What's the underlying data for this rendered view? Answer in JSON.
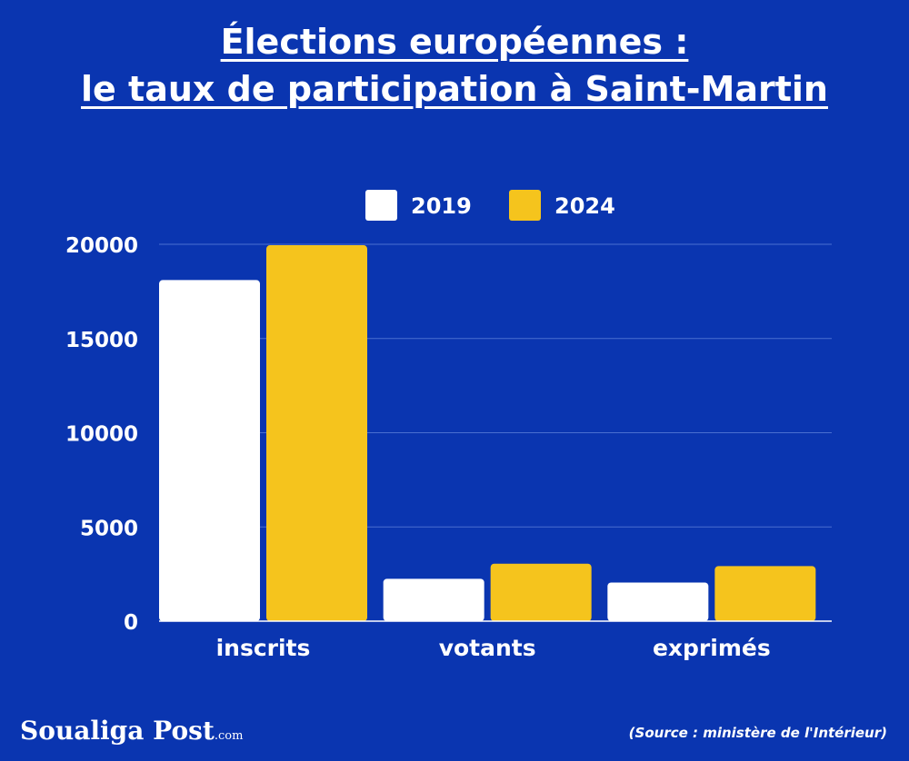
{
  "title_line1": "Élections européennes :",
  "title_line2": "le taux de participation à Saint-Martin",
  "brand_name": "Soualiga Post",
  "brand_suffix": ".com",
  "source": "(Source : ministère de l'Intérieur)",
  "colors": {
    "background": "#0a35b0",
    "series_2019": "#ffffff",
    "series_2024": "#f5c41d",
    "grid": "#4a6fd0"
  },
  "chart_data": {
    "type": "bar",
    "categories": [
      "inscrits",
      "votants",
      "exprimés"
    ],
    "series": [
      {
        "name": "2019",
        "values": [
          18100,
          2250,
          2050
        ]
      },
      {
        "name": "2024",
        "values": [
          19950,
          3050,
          2920
        ]
      }
    ],
    "yticks": [
      0,
      5000,
      10000,
      15000,
      20000
    ],
    "ylim": [
      0,
      20000
    ],
    "grid": true,
    "legend_position": "top"
  }
}
